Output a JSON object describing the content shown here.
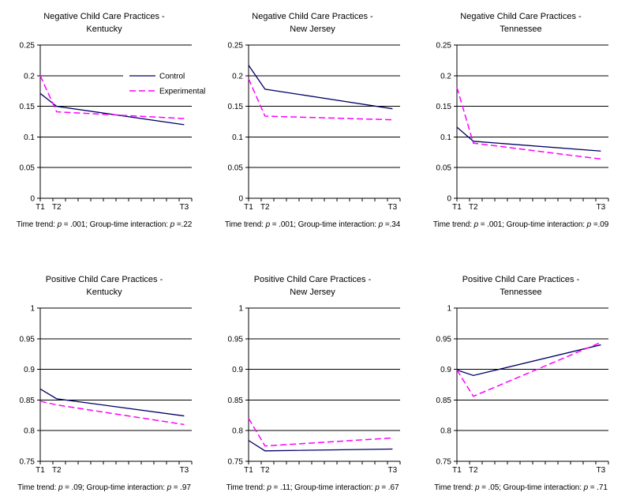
{
  "page": {
    "background": "#FFFFFF"
  },
  "colors": {
    "control": "#000066",
    "experimental": "#FF00FF",
    "grid": "#000000",
    "text": "#000000"
  },
  "legend": {
    "items": [
      "Control",
      "Experimental"
    ],
    "position": "inside-top-right-of-first-chart"
  },
  "chart_data": [
    {
      "type": "line",
      "title": "Negative Child Care Practices - Kentucky",
      "title_line1": "Negative Child Care Practices -",
      "title_line2": "Kentucky",
      "x_categories": [
        "T1",
        "T2",
        "T3"
      ],
      "x_positions": [
        0,
        1.3,
        11.4
      ],
      "x_range": [
        0,
        12
      ],
      "ylim": [
        0,
        0.25
      ],
      "yticks": [
        {
          "value": 0,
          "label": "0"
        },
        {
          "value": 0.05,
          "label": "0.05"
        },
        {
          "value": 0.1,
          "label": "0.1"
        },
        {
          "value": 0.15,
          "label": "0.15"
        },
        {
          "value": 0.2,
          "label": "0.2"
        },
        {
          "value": 0.25,
          "label": "0.25"
        }
      ],
      "series": [
        {
          "name": "Control",
          "color": "#000066",
          "dash": null,
          "values": [
            0.171,
            0.15,
            0.12
          ]
        },
        {
          "name": "Experimental",
          "color": "#FF00FF",
          "dash": "8,4",
          "values": [
            0.2,
            0.141,
            0.13
          ]
        }
      ],
      "legend_visible": true,
      "grid": true,
      "p_time": ".001",
      "p_interaction": ".22",
      "caption": {
        "pre": "Time trend: ",
        "p1": "p",
        "mid": " = .001; Group-time interaction: ",
        "p2": "p",
        "end": " =.22"
      }
    },
    {
      "type": "line",
      "title": "Negative Child Care Practices - New Jersey",
      "title_line1": "Negative Child Care Practices -",
      "title_line2": "New Jersey",
      "x_categories": [
        "T1",
        "T2",
        "T3"
      ],
      "x_positions": [
        0,
        1.3,
        11.4
      ],
      "x_range": [
        0,
        12
      ],
      "ylim": [
        0,
        0.25
      ],
      "yticks": [
        {
          "value": 0,
          "label": "0"
        },
        {
          "value": 0.05,
          "label": "0.05"
        },
        {
          "value": 0.1,
          "label": "0.1"
        },
        {
          "value": 0.15,
          "label": "0.15"
        },
        {
          "value": 0.2,
          "label": "0.2"
        },
        {
          "value": 0.25,
          "label": "0.25"
        }
      ],
      "series": [
        {
          "name": "Control",
          "color": "#000066",
          "dash": null,
          "values": [
            0.217,
            0.178,
            0.146
          ]
        },
        {
          "name": "Experimental",
          "color": "#FF00FF",
          "dash": "8,4",
          "values": [
            0.195,
            0.134,
            0.128
          ]
        }
      ],
      "legend_visible": false,
      "grid": true,
      "p_time": ".001",
      "p_interaction": ".34",
      "caption": {
        "pre": "Time trend: ",
        "p1": "p",
        "mid": " = .001; Group-time interaction: ",
        "p2": "p",
        "end": " =.34"
      }
    },
    {
      "type": "line",
      "title": "Negative Child Care Practices - Tennessee",
      "title_line1": "Negative Child Care Practices -",
      "title_line2": "Tennessee",
      "x_categories": [
        "T1",
        "T2",
        "T3"
      ],
      "x_positions": [
        0,
        1.3,
        11.4
      ],
      "x_range": [
        0,
        12
      ],
      "ylim": [
        0,
        0.25
      ],
      "yticks": [
        {
          "value": 0,
          "label": "0"
        },
        {
          "value": 0.05,
          "label": "0.05"
        },
        {
          "value": 0.1,
          "label": "0.1"
        },
        {
          "value": 0.15,
          "label": "0.15"
        },
        {
          "value": 0.2,
          "label": "0.2"
        },
        {
          "value": 0.25,
          "label": "0.25"
        }
      ],
      "series": [
        {
          "name": "Control",
          "color": "#000066",
          "dash": null,
          "values": [
            0.116,
            0.093,
            0.077
          ]
        },
        {
          "name": "Experimental",
          "color": "#FF00FF",
          "dash": "8,4",
          "values": [
            0.181,
            0.09,
            0.064
          ]
        }
      ],
      "legend_visible": false,
      "grid": true,
      "p_time": ".001",
      "p_interaction": ".09",
      "caption": {
        "pre": "Time trend: ",
        "p1": "p",
        "mid": " = .001; Group-time interaction: ",
        "p2": "p",
        "end": " =.09"
      }
    },
    {
      "type": "line",
      "title": "Positive Child Care Practices - Kentucky",
      "title_line1": "Positive Child Care Practices -",
      "title_line2": "Kentucky",
      "x_categories": [
        "T1",
        "T2",
        "T3"
      ],
      "x_positions": [
        0,
        1.3,
        11.4
      ],
      "x_range": [
        0,
        12
      ],
      "ylim": [
        0.75,
        1
      ],
      "yticks": [
        {
          "value": 0.75,
          "label": "0.75"
        },
        {
          "value": 0.8,
          "label": "0.8"
        },
        {
          "value": 0.85,
          "label": "0.85"
        },
        {
          "value": 0.9,
          "label": "0.9"
        },
        {
          "value": 0.95,
          "label": "0.95"
        },
        {
          "value": 1,
          "label": "1"
        }
      ],
      "series": [
        {
          "name": "Control",
          "color": "#000066",
          "dash": null,
          "values": [
            0.868,
            0.852,
            0.824
          ]
        },
        {
          "name": "Experimental",
          "color": "#FF00FF",
          "dash": "8,4",
          "values": [
            0.848,
            0.842,
            0.81
          ]
        }
      ],
      "legend_visible": false,
      "grid": true,
      "p_time": ".09",
      "p_interaction": ".97",
      "caption": {
        "pre": "Time trend: ",
        "p1": "p",
        "mid": " = .09; Group-time interaction: ",
        "p2": "p",
        "end": " = .97"
      }
    },
    {
      "type": "line",
      "title": "Positive Child Care Practices - New Jersey",
      "title_line1": "Positive Child Care Practices -",
      "title_line2": "New Jersey",
      "x_categories": [
        "T1",
        "T2",
        "T3"
      ],
      "x_positions": [
        0,
        1.3,
        11.4
      ],
      "x_range": [
        0,
        12
      ],
      "ylim": [
        0.75,
        1
      ],
      "yticks": [
        {
          "value": 0.75,
          "label": "0.75"
        },
        {
          "value": 0.8,
          "label": "0.8"
        },
        {
          "value": 0.85,
          "label": "0.85"
        },
        {
          "value": 0.9,
          "label": "0.9"
        },
        {
          "value": 0.95,
          "label": "0.95"
        },
        {
          "value": 1,
          "label": "1"
        }
      ],
      "series": [
        {
          "name": "Control",
          "color": "#000066",
          "dash": null,
          "values": [
            0.784,
            0.767,
            0.77
          ]
        },
        {
          "name": "Experimental",
          "color": "#FF00FF",
          "dash": "8,4",
          "values": [
            0.82,
            0.775,
            0.788
          ]
        }
      ],
      "legend_visible": false,
      "grid": true,
      "p_time": ".11",
      "p_interaction": ".67",
      "caption": {
        "pre": "Time trend: ",
        "p1": "p",
        "mid": " = .11; Group-time interaction: ",
        "p2": "p",
        "end": " = .67"
      }
    },
    {
      "type": "line",
      "title": "Positive Child Care Practices - Tennessee",
      "title_line1": "Positive Child Care Practices -",
      "title_line2": "Tennessee",
      "x_categories": [
        "T1",
        "T2",
        "T3"
      ],
      "x_positions": [
        0,
        1.3,
        11.4
      ],
      "x_range": [
        0,
        12
      ],
      "ylim": [
        0.75,
        1
      ],
      "yticks": [
        {
          "value": 0.75,
          "label": "0.75"
        },
        {
          "value": 0.8,
          "label": "0.8"
        },
        {
          "value": 0.85,
          "label": "0.85"
        },
        {
          "value": 0.9,
          "label": "0.9"
        },
        {
          "value": 0.95,
          "label": "0.95"
        },
        {
          "value": 1,
          "label": "1"
        }
      ],
      "series": [
        {
          "name": "Control",
          "color": "#000066",
          "dash": null,
          "values": [
            0.899,
            0.89,
            0.94
          ]
        },
        {
          "name": "Experimental",
          "color": "#FF00FF",
          "dash": "8,4",
          "values": [
            0.899,
            0.856,
            0.944
          ]
        }
      ],
      "legend_visible": false,
      "grid": true,
      "p_time": ".05",
      "p_interaction": ".71",
      "caption": {
        "pre": "Time trend: ",
        "p1": "p",
        "mid": " = .05; Group-time interaction: ",
        "p2": "p",
        "end": " = .71"
      }
    }
  ]
}
